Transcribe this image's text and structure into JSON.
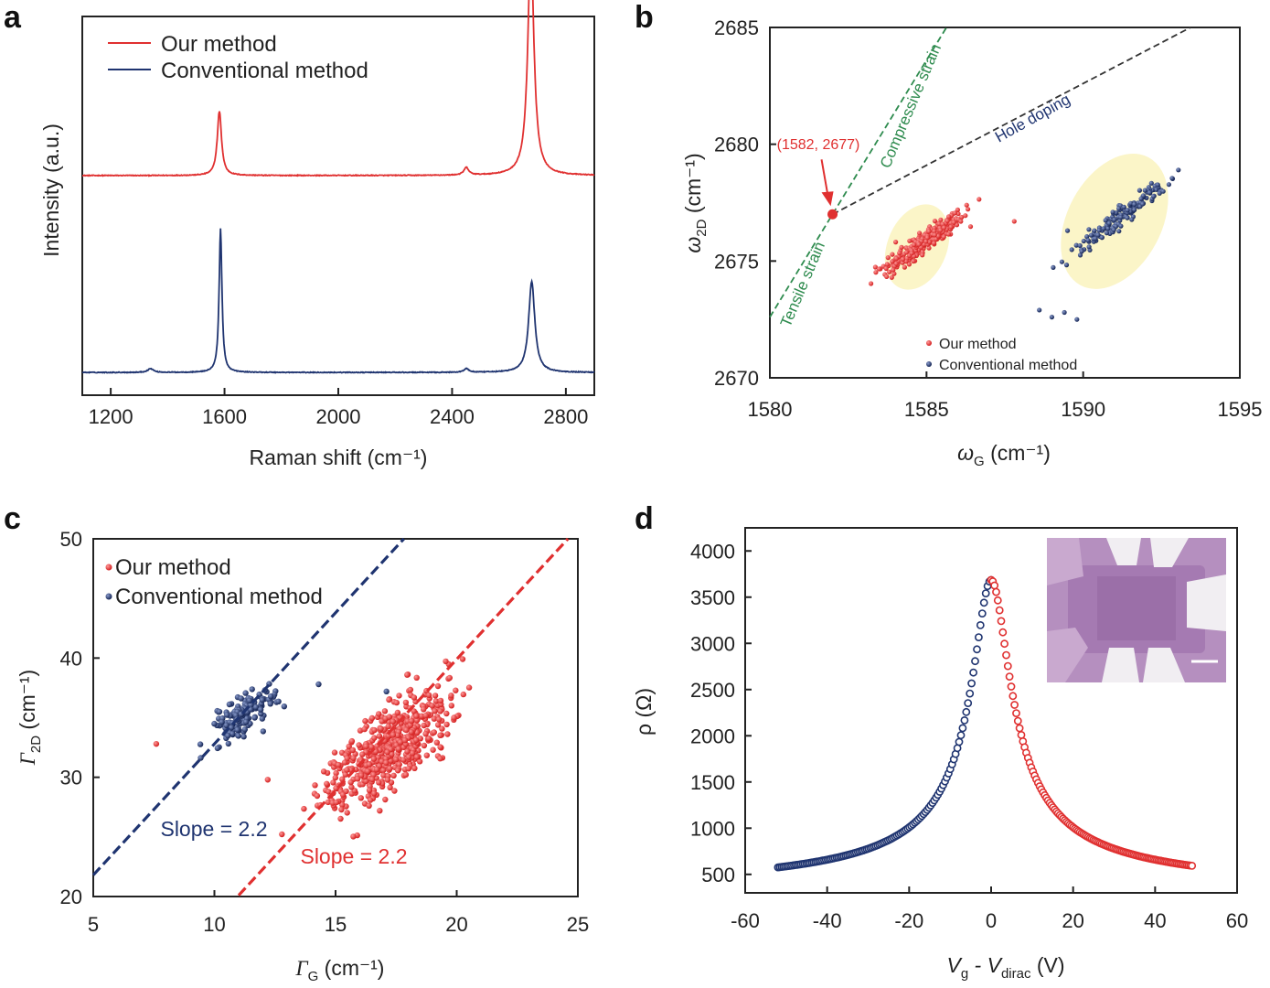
{
  "panels": {
    "a": {
      "letter": "a"
    },
    "b": {
      "letter": "b"
    },
    "c": {
      "letter": "c"
    },
    "d": {
      "letter": "d"
    }
  },
  "colors": {
    "red": "#e03030",
    "blue": "#1f3470",
    "green": "#2e8b4e",
    "dash": "#333333",
    "ellipse": "#fbf5c8",
    "inset_bg": "#b58fbf"
  },
  "chart_data": [
    {
      "id": "a",
      "type": "line",
      "title": "",
      "xlabel": "Raman shift (cm⁻¹)",
      "ylabel": "Intensity (a.u.)",
      "xlim": [
        1100,
        2900
      ],
      "xticks": [
        1200,
        1600,
        2000,
        2400,
        2800
      ],
      "legend": [
        "Our method",
        "Conventional method"
      ],
      "series": [
        {
          "name": "Our method",
          "color": "red",
          "baseline": 0.58,
          "peaks": [
            [
              1582,
              0.17,
              9
            ],
            [
              2450,
              0.02,
              10
            ],
            [
              2677,
              0.6,
              13
            ]
          ]
        },
        {
          "name": "Conventional method",
          "color": "blue",
          "baseline": 0.06,
          "peaks": [
            [
              1340,
              0.01,
              12
            ],
            [
              1586,
              0.38,
              6
            ],
            [
              2450,
              0.01,
              10
            ],
            [
              2680,
              0.24,
              13
            ]
          ]
        }
      ]
    },
    {
      "id": "b",
      "type": "scatter",
      "xlabel": "ω",
      "xlabel_sub": "G",
      "xlabel_unit": " (cm⁻¹)",
      "ylabel": "ω",
      "ylabel_sub": "2D",
      "ylabel_unit": " (cm⁻¹)",
      "xlim": [
        1580,
        1595
      ],
      "ylim": [
        2670,
        2685
      ],
      "xticks": [
        1580,
        1585,
        1590,
        1595
      ],
      "yticks": [
        2670,
        2675,
        2680,
        2685
      ],
      "point": [
        1582,
        2677
      ],
      "point_label": "(1582, 2677)",
      "strain_line_slope": 2.2,
      "doping_line_slope": 0.7,
      "label_tensile": "Tensile strain",
      "label_compressive": "Compressive strain",
      "label_hole": "Hole doping",
      "legend": [
        "Our method",
        "Conventional method"
      ],
      "clusters": [
        {
          "name": "Our method",
          "color": "red",
          "n": 320,
          "cx": 1584.9,
          "cy": 2675.8,
          "slope": 1.05,
          "spread": 1.2,
          "width": 0.3,
          "ellipse": [
            1584.7,
            2675.6,
            1.9,
            0.95,
            68
          ]
        },
        {
          "name": "Conventional method",
          "color": "blue",
          "n": 170,
          "cx": 1591.3,
          "cy": 2677.0,
          "slope": 1.05,
          "spread": 1.6,
          "width": 0.3,
          "ellipse": [
            1591.0,
            2676.7,
            3.1,
            1.5,
            62
          ]
        }
      ],
      "outliers": [
        {
          "x": 1587.8,
          "y": 2676.7,
          "color": "red"
        },
        {
          "x": 1588.6,
          "y": 2672.9,
          "color": "blue"
        },
        {
          "x": 1589.0,
          "y": 2672.6,
          "color": "blue"
        },
        {
          "x": 1589.4,
          "y": 2672.8,
          "color": "blue"
        },
        {
          "x": 1589.8,
          "y": 2672.5,
          "color": "blue"
        },
        {
          "x": 1589.5,
          "y": 2676.3,
          "color": "blue"
        }
      ]
    },
    {
      "id": "c",
      "type": "scatter",
      "xlabel": "Γ",
      "xlabel_sub": "G",
      "xlabel_unit": " (cm⁻¹)",
      "ylabel": "Γ",
      "ylabel_sub": "2D",
      "ylabel_unit": " (cm⁻¹)",
      "xlim": [
        5,
        25
      ],
      "ylim": [
        20,
        50
      ],
      "xticks": [
        5,
        10,
        15,
        20,
        25
      ],
      "yticks": [
        20,
        30,
        40,
        50
      ],
      "legend": [
        "Our method",
        "Conventional method"
      ],
      "fit_lines": [
        {
          "color": "blue",
          "slope": 2.2,
          "x0": 5,
          "y0": 21.8
        },
        {
          "color": "red",
          "slope": 2.2,
          "x0": 11,
          "y0": 20.1
        }
      ],
      "slope_labels": [
        {
          "text": "Slope = 2.2",
          "color": "blue"
        },
        {
          "text": "Slope = 2.2",
          "color": "red"
        }
      ],
      "clusters": [
        {
          "name": "Conventional method",
          "color": "blue",
          "n": 150,
          "cx": 11.2,
          "cy": 35.3,
          "slope": 1.5,
          "spread": 1.0,
          "width": 0.8
        },
        {
          "name": "Our method",
          "color": "red",
          "n": 520,
          "cx": 17.3,
          "cy": 32.6,
          "slope": 1.6,
          "spread": 2.1,
          "width": 1.7
        }
      ],
      "outliers": [
        {
          "x": 7.6,
          "y": 32.8,
          "color": "red"
        },
        {
          "x": 12.2,
          "y": 29.8,
          "color": "red"
        },
        {
          "x": 14.3,
          "y": 37.8,
          "color": "blue"
        },
        {
          "x": 17.1,
          "y": 37.2,
          "color": "blue"
        }
      ]
    },
    {
      "id": "d",
      "type": "line",
      "xlabel": "V",
      "xlabel_sub1": "g",
      "xlabel_mid": " - V",
      "xlabel_sub2": "dirac",
      "xlabel_unit": " (V)",
      "ylabel": "ρ (Ω)",
      "xlim": [
        -60,
        60
      ],
      "ylim": [
        300,
        4250
      ],
      "xticks": [
        -60,
        -40,
        -20,
        0,
        20,
        40,
        60
      ],
      "yticks": [
        500,
        1000,
        1500,
        2000,
        2500,
        3000,
        3500,
        4000
      ],
      "rho_max": 3800,
      "rho_res": 330,
      "x_left": -52,
      "x_right": 49,
      "left_color": "blue",
      "right_color": "red"
    }
  ]
}
